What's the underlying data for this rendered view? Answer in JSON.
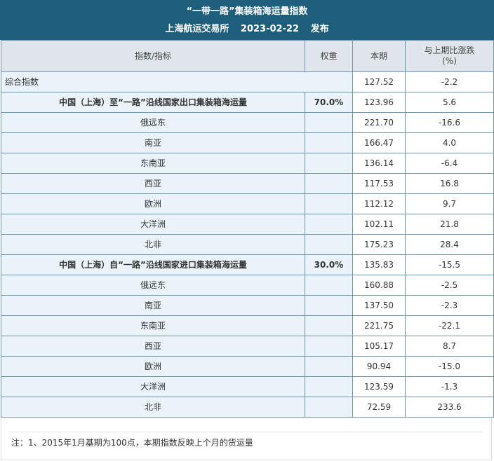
{
  "header": {
    "title": "“一带一路”集装箱海运量指数",
    "publisher": "上海航运交易所",
    "date": "2023-02-22",
    "publish_word": "发布"
  },
  "columns": {
    "name": "指数/指标",
    "weight": "权重",
    "current": "本期",
    "change": "与上期比涨跌",
    "change_unit": "(%)"
  },
  "composite": {
    "name": "综合指数",
    "weight": "",
    "current": "127.52",
    "change": "-2.2"
  },
  "export": {
    "name": "中国（上海）至“一路”沿线国家出口集装箱海运量",
    "weight": "70.0%",
    "current": "123.96",
    "change": "5.6",
    "rows": [
      {
        "name": "俄远东",
        "current": "221.70",
        "change": "-16.6"
      },
      {
        "name": "南亚",
        "current": "166.47",
        "change": "4.0"
      },
      {
        "name": "东南亚",
        "current": "136.14",
        "change": "-6.4"
      },
      {
        "name": "西亚",
        "current": "117.53",
        "change": "16.8"
      },
      {
        "name": "欧洲",
        "current": "112.12",
        "change": "9.7"
      },
      {
        "name": "大洋洲",
        "current": "102.11",
        "change": "21.8"
      },
      {
        "name": "北非",
        "current": "175.23",
        "change": "28.4"
      }
    ]
  },
  "import": {
    "name": "中国（上海）自“一路”沿线国家进口集装箱海运量",
    "weight": "30.0%",
    "current": "135.83",
    "change": "-15.5",
    "rows": [
      {
        "name": "俄远东",
        "current": "160.88",
        "change": "-2.5"
      },
      {
        "name": "南亚",
        "current": "137.50",
        "change": "-2.3"
      },
      {
        "name": "东南亚",
        "current": "221.75",
        "change": "-22.1"
      },
      {
        "name": "西亚",
        "current": "105.17",
        "change": "8.7"
      },
      {
        "name": "欧洲",
        "current": "90.94",
        "change": "-15.0"
      },
      {
        "name": "大洋洲",
        "current": "123.59",
        "change": "-1.3"
      },
      {
        "name": "北非",
        "current": "72.59",
        "change": "233.6"
      }
    ]
  },
  "note": "注：1、2015年1月基期为100点，本期指数反映上个月的货运量"
}
